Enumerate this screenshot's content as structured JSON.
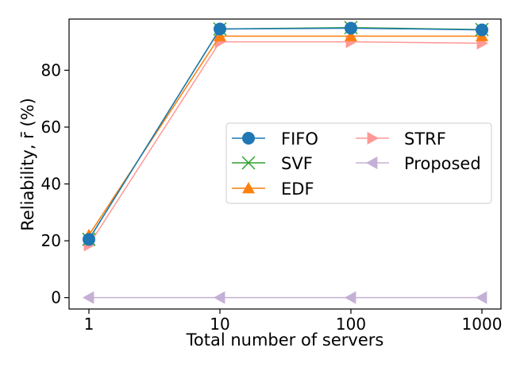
{
  "chart_data": {
    "type": "line",
    "x_scale": "log",
    "x": [
      1,
      10,
      100,
      1000
    ],
    "x_tick_labels": [
      "1",
      "10",
      "100",
      "1000"
    ],
    "xlabel": "Total number of servers",
    "ylabel": "Reliability, r̄ (%)",
    "ylim": [
      -4,
      98
    ],
    "y_ticks": [
      0,
      20,
      40,
      60,
      80
    ],
    "y_tick_labels": [
      "0",
      "20",
      "40",
      "60",
      "80"
    ],
    "grid": false,
    "legend_position": "center-right",
    "series": [
      {
        "name": "FIFO",
        "color": "#1f77b4",
        "marker": "circle",
        "values": [
          20.5,
          94.5,
          94.8,
          94.2
        ]
      },
      {
        "name": "SVF",
        "color": "#2ca02c",
        "marker": "x",
        "values": [
          20.5,
          94.5,
          95.0,
          94.3
        ]
      },
      {
        "name": "EDF",
        "color": "#ff7f0e",
        "marker": "triangle-up",
        "values": [
          22.0,
          92.0,
          92.0,
          92.0
        ]
      },
      {
        "name": "STRF",
        "color": "#ff9896",
        "marker": "triangle-right",
        "values": [
          18.5,
          90.0,
          90.0,
          89.5
        ]
      },
      {
        "name": "Proposed",
        "color": "#c5b0d5",
        "marker": "triangle-left",
        "values": [
          0,
          0,
          0,
          0
        ]
      }
    ]
  }
}
